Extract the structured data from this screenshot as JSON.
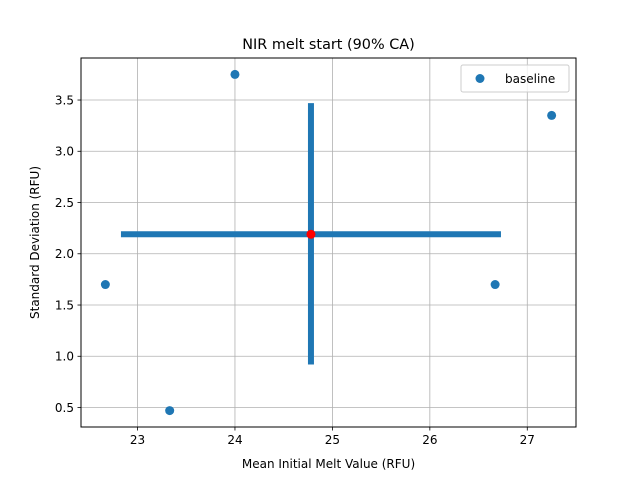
{
  "chart_data": {
    "type": "scatter",
    "title": "NIR melt start (90% CA)",
    "xlabel": "Mean Initial Melt Value (RFU)",
    "ylabel": "Standard Deviation (RFU)",
    "xlim": [
      22.42,
      27.5
    ],
    "ylim": [
      0.31,
      3.91
    ],
    "x_ticks": [
      23,
      24,
      25,
      26,
      27
    ],
    "x_tick_labels": [
      "23",
      "24",
      "25",
      "26",
      "27"
    ],
    "y_ticks": [
      0.5,
      1.0,
      1.5,
      2.0,
      2.5,
      3.0,
      3.5
    ],
    "y_tick_labels": [
      "0.5",
      "1.0",
      "1.5",
      "2.0",
      "2.5",
      "3.0",
      "3.5"
    ],
    "grid": true,
    "legend_position": "top-right",
    "series": [
      {
        "name": "baseline",
        "color": "#1f77b4",
        "points": [
          {
            "x": 22.67,
            "y": 1.7
          },
          {
            "x": 23.33,
            "y": 0.47
          },
          {
            "x": 24.0,
            "y": 3.75
          },
          {
            "x": 26.67,
            "y": 1.7
          },
          {
            "x": 27.25,
            "y": 3.35
          }
        ]
      }
    ],
    "mean_point": {
      "x": 24.78,
      "y": 2.19,
      "color": "#ff0000"
    },
    "error_bars": {
      "color": "#1f77b4",
      "x_range": [
        22.83,
        26.73
      ],
      "y_range": [
        0.92,
        3.47
      ]
    }
  }
}
